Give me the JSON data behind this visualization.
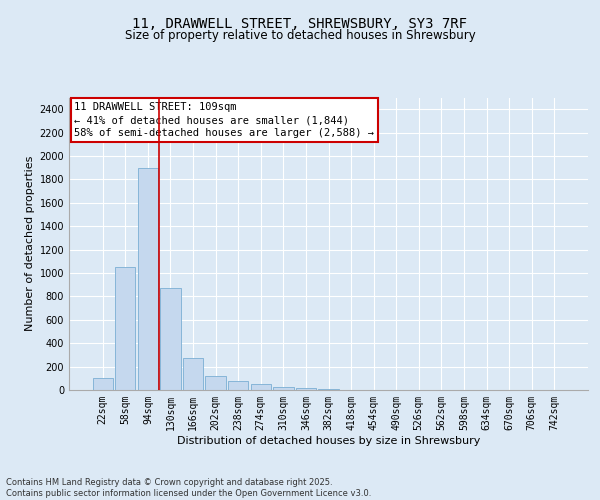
{
  "title_line1": "11, DRAWWELL STREET, SHREWSBURY, SY3 7RF",
  "title_line2": "Size of property relative to detached houses in Shrewsbury",
  "xlabel": "Distribution of detached houses by size in Shrewsbury",
  "ylabel": "Number of detached properties",
  "categories": [
    "22sqm",
    "58sqm",
    "94sqm",
    "130sqm",
    "166sqm",
    "202sqm",
    "238sqm",
    "274sqm",
    "310sqm",
    "346sqm",
    "382sqm",
    "418sqm",
    "454sqm",
    "490sqm",
    "526sqm",
    "562sqm",
    "598sqm",
    "634sqm",
    "670sqm",
    "706sqm",
    "742sqm"
  ],
  "values": [
    100,
    1050,
    1900,
    870,
    270,
    120,
    80,
    55,
    25,
    15,
    5,
    3,
    2,
    1,
    0,
    0,
    0,
    0,
    0,
    0,
    0
  ],
  "bar_color": "#c5d8ee",
  "bar_edge_color": "#7aaed4",
  "background_color": "#dce9f5",
  "plot_bg_color": "#dce9f5",
  "grid_color": "#ffffff",
  "vline_x": 2.5,
  "vline_color": "#cc0000",
  "annotation_text": "11 DRAWWELL STREET: 109sqm\n← 41% of detached houses are smaller (1,844)\n58% of semi-detached houses are larger (2,588) →",
  "annotation_box_color": "#ffffff",
  "annotation_box_edge": "#cc0000",
  "ylim": [
    0,
    2500
  ],
  "yticks": [
    0,
    200,
    400,
    600,
    800,
    1000,
    1200,
    1400,
    1600,
    1800,
    2000,
    2200,
    2400
  ],
  "footnote": "Contains HM Land Registry data © Crown copyright and database right 2025.\nContains public sector information licensed under the Open Government Licence v3.0.",
  "title_fontsize": 10,
  "subtitle_fontsize": 8.5,
  "tick_fontsize": 7,
  "label_fontsize": 8,
  "annot_fontsize": 7.5
}
